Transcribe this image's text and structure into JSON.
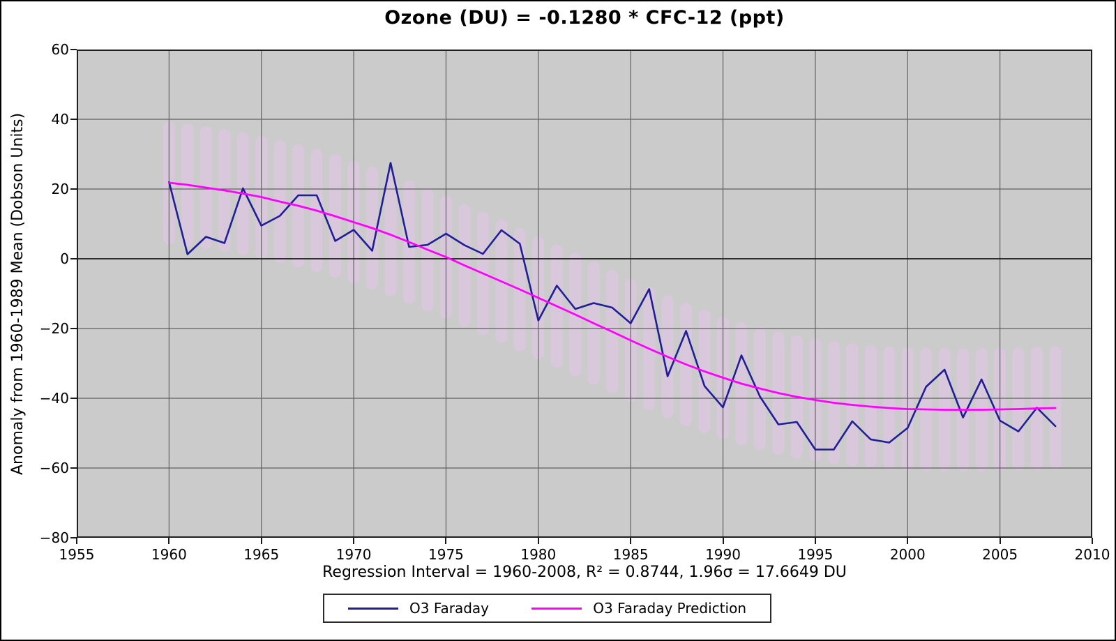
{
  "title": "Ozone (DU) = -0.1280 * CFC-12 (ppt)",
  "y_axis": {
    "label": "Anomaly from 1960-1989 Mean (Dobson Units)",
    "tick_values": [
      60,
      40,
      20,
      0,
      -20,
      -40,
      -60,
      -80
    ],
    "tick_labels": [
      "60",
      "40",
      "20",
      "0",
      "−20",
      "−40",
      "−60",
      "−80"
    ]
  },
  "x_axis": {
    "label": "Regression Interval = 1960-2008, R² = 0.8744, 1.96σ = 17.6649 DU",
    "tick_values": [
      1955,
      1960,
      1965,
      1970,
      1975,
      1980,
      1985,
      1990,
      1995,
      2000,
      2005,
      2010
    ],
    "tick_labels": [
      "1955",
      "1960",
      "1965",
      "1970",
      "1975",
      "1980",
      "1985",
      "1990",
      "1995",
      "2000",
      "2005",
      "2010"
    ]
  },
  "legend": [
    {
      "label": "O3 Faraday",
      "color": "#1e1e96"
    },
    {
      "label": "O3 Faraday Prediction",
      "color": "#ff00ff"
    }
  ],
  "colors": {
    "plot_background": "#cbcbcb",
    "gridline": "#606060",
    "zero_line": "#1a1a1a",
    "frame": "#1f1f1f",
    "confidence_band": "#d9c7dc",
    "series_observed": "#1e1e96",
    "series_prediction": "#ff00ff"
  },
  "chart_data": {
    "type": "line",
    "x": [
      1960,
      1961,
      1962,
      1963,
      1964,
      1965,
      1966,
      1967,
      1968,
      1969,
      1970,
      1971,
      1972,
      1973,
      1974,
      1975,
      1976,
      1977,
      1978,
      1979,
      1980,
      1981,
      1982,
      1983,
      1984,
      1985,
      1986,
      1987,
      1988,
      1989,
      1990,
      1991,
      1992,
      1993,
      1994,
      1995,
      1996,
      1997,
      1998,
      1999,
      2000,
      2001,
      2002,
      2003,
      2004,
      2005,
      2006,
      2007,
      2008
    ],
    "series": [
      {
        "name": "O3 Faraday",
        "color": "#1e1e96",
        "values": [
          22.0,
          1.3,
          6.3,
          4.5,
          20.2,
          9.5,
          12.3,
          18.2,
          18.2,
          5.1,
          8.3,
          2.3,
          27.5,
          3.4,
          4.0,
          7.2,
          3.9,
          1.4,
          8.2,
          4.3,
          -17.7,
          -7.7,
          -14.4,
          -12.7,
          -14.0,
          -18.5,
          -8.7,
          -33.7,
          -20.7,
          -36.5,
          -42.6,
          -27.7,
          -39.5,
          -47.5,
          -46.8,
          -54.7,
          -54.7,
          -46.6,
          -51.8,
          -52.7,
          -48.5,
          -36.7,
          -31.8,
          -45.5,
          -34.6,
          -46.4,
          -49.5,
          -42.7,
          -48.0
        ]
      },
      {
        "name": "O3 Faraday Prediction",
        "color": "#ff00ff",
        "values": [
          21.8,
          21.2,
          20.4,
          19.6,
          18.7,
          17.7,
          16.4,
          15.2,
          13.8,
          12.2,
          10.5,
          8.8,
          6.9,
          4.8,
          2.6,
          0.5,
          -1.9,
          -4.2,
          -6.5,
          -8.8,
          -11.2,
          -13.6,
          -16.0,
          -18.5,
          -20.9,
          -23.4,
          -25.8,
          -28.1,
          -30.3,
          -32.3,
          -34.1,
          -35.8,
          -37.2,
          -38.5,
          -39.6,
          -40.5,
          -41.3,
          -41.9,
          -42.4,
          -42.8,
          -43.1,
          -43.2,
          -43.3,
          -43.3,
          -43.3,
          -43.2,
          -43.1,
          -42.9,
          -42.8
        ]
      }
    ],
    "confidence_band": {
      "around_series": "O3 Faraday Prediction",
      "half_width": 17.6649,
      "style": "vertical-capsules",
      "color": "#d9c7dc"
    },
    "xlim": [
      1955,
      2010
    ],
    "ylim": [
      -80,
      60
    ],
    "grid": true,
    "legend_position": "bottom-center",
    "title": "Ozone (DU) = -0.1280 * CFC-12 (ppt)",
    "xlabel": "Regression Interval = 1960-2008, R² = 0.8744, 1.96σ = 17.6649 DU",
    "ylabel": "Anomaly from 1960-1989 Mean (Dobson Units)"
  }
}
